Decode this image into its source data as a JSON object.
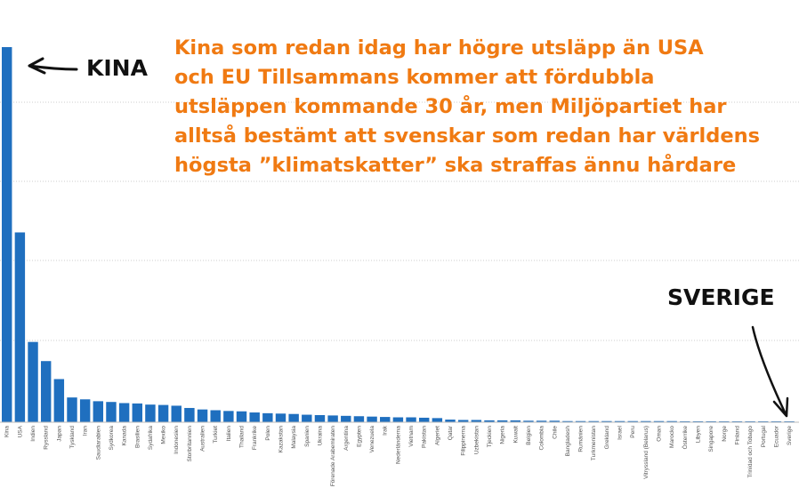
{
  "chart_data": {
    "type": "bar",
    "categories": [
      "Kina",
      "USA",
      "Indien",
      "Ryssland",
      "Japan",
      "Tyskland",
      "Iran",
      "Saudiarabien",
      "Sydkorea",
      "Kanada",
      "Brasilien",
      "Sydafrika",
      "Mexiko",
      "Indonesien",
      "Storbritannien",
      "Australien",
      "Turkiet",
      "Italien",
      "Thailand",
      "Frankrike",
      "Polen",
      "Kazakstan",
      "Malaysia",
      "Spanien",
      "Ukraina",
      "Förenade Arabemiraten",
      "Argentina",
      "Egypten",
      "Venezuela",
      "Irak",
      "Nederländerna",
      "Vietnam",
      "Pakistan",
      "Algeriet",
      "Qatar",
      "Filippinerna",
      "Uzbekistan",
      "Tjeckien",
      "Nigeria",
      "Kuwait",
      "Belgien",
      "Colombia",
      "Chile",
      "Bangladesh",
      "Rumänien",
      "Turkmenistan",
      "Grekland",
      "Israel",
      "Peru",
      "Vitryssland (Belarus)",
      "Oman",
      "Marocko",
      "Österrike",
      "Libyen",
      "Singapore",
      "Norge",
      "Finland",
      "Trinidad och Tobago",
      "Portugal",
      "Ecuador",
      "Sverige"
    ],
    "values": [
      100,
      50.6,
      21.4,
      16.3,
      11.5,
      6.6,
      6.1,
      5.6,
      5.4,
      5.1,
      5.0,
      4.7,
      4.6,
      4.4,
      3.8,
      3.4,
      3.2,
      3.0,
      2.9,
      2.6,
      2.4,
      2.3,
      2.2,
      2.0,
      1.9,
      1.8,
      1.7,
      1.6,
      1.5,
      1.4,
      1.3,
      1.3,
      1.2,
      1.1,
      0.7,
      0.6,
      0.6,
      0.5,
      0.5,
      0.5,
      0.4,
      0.4,
      0.4,
      0.3,
      0.3,
      0.3,
      0.3,
      0.3,
      0.3,
      0.3,
      0.3,
      0.3,
      0.25,
      0.25,
      0.25,
      0.2,
      0.2,
      0.2,
      0.2,
      0.2,
      0.15
    ],
    "ylim": [
      0,
      100
    ],
    "grid": true,
    "title": "",
    "xlabel": "",
    "ylabel": "",
    "bar_color": "#1f6fbf",
    "grid_color": "#cccccc"
  },
  "annotations": {
    "text": "Kina som redan idag har högre utsläpp än USA\noch EU Tillsammans kommer att fördubbla\nutsläppen kommande 30 år, men Miljöpartiet har\nalltså bestämt att svenskar som redan har världens\nhögsta ”klimatskatter” ska straffas ännu hårdare",
    "text_color": "#f07a12",
    "kina_label": "KINA",
    "sverige_label": "SVERIGE"
  }
}
